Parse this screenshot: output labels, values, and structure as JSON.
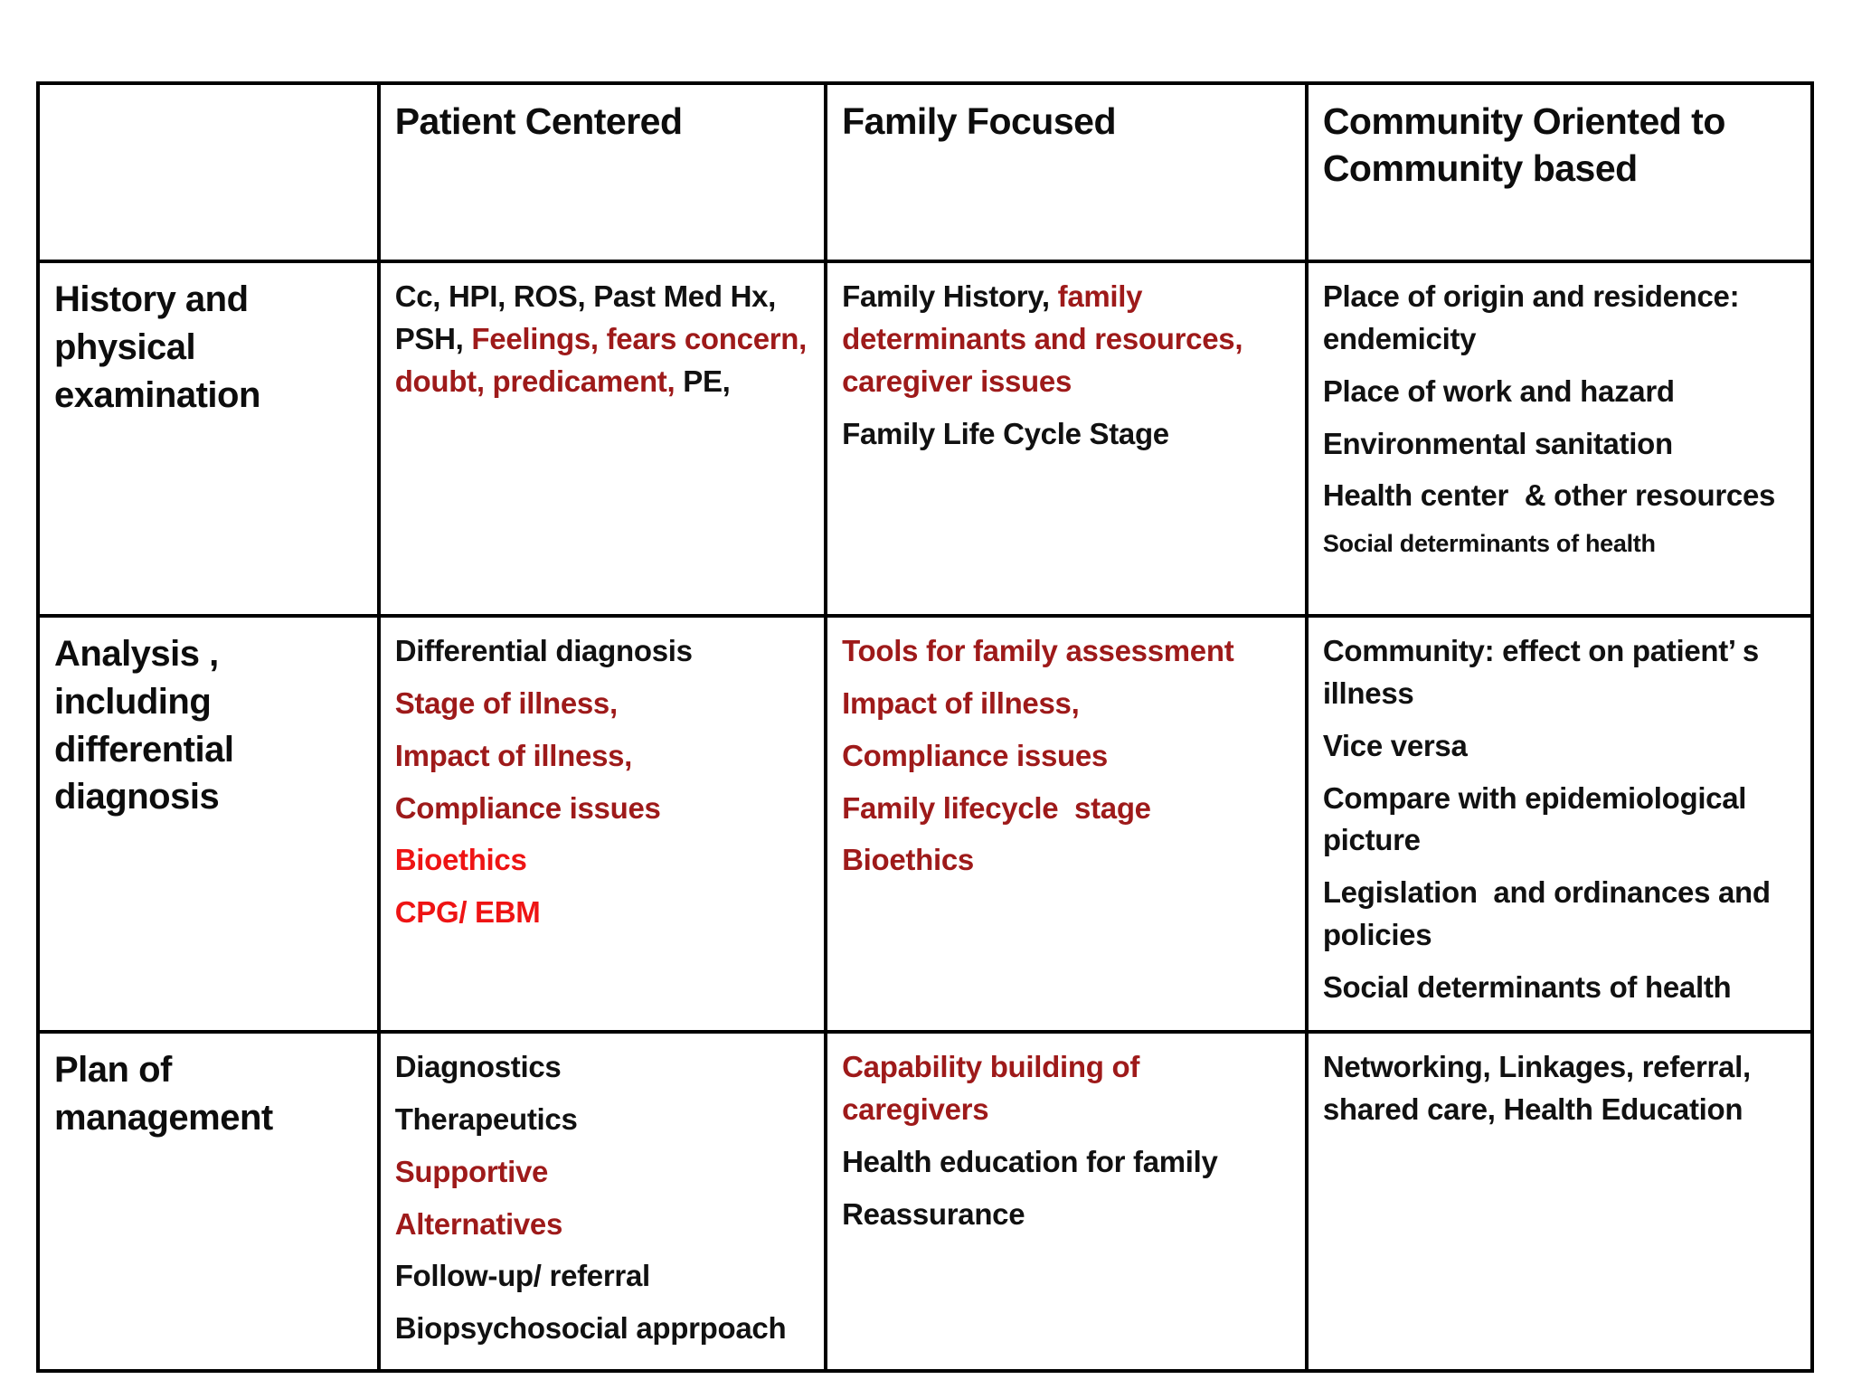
{
  "colors": {
    "black": "#111111",
    "darkRed": "#9e1a1a",
    "brightRed": "#ee1414",
    "border": "#000000",
    "background": "#ffffff"
  },
  "table": {
    "headers": {
      "corner": "",
      "col1": "Patient Centered",
      "col2": "Family Focused",
      "col3": "Community Oriented to Community based"
    },
    "rows": [
      {
        "label": "History and physical examination",
        "cells": [
          {
            "paras": [
              {
                "spans": [
                  {
                    "t": "Cc, HPI, ROS, Past Med Hx, PSH, ",
                    "c": "black"
                  },
                  {
                    "t": "Feelings, fears concern, doubt, predicament,",
                    "c": "darkRed"
                  },
                  {
                    "t": " PE,",
                    "c": "black"
                  }
                ]
              }
            ]
          },
          {
            "paras": [
              {
                "spans": [
                  {
                    "t": "Family History, ",
                    "c": "black"
                  },
                  {
                    "t": "family determinants and resources, caregiver issues",
                    "c": "darkRed"
                  }
                ]
              },
              {
                "spans": [
                  {
                    "t": "Family Life Cycle Stage",
                    "c": "black"
                  }
                ]
              }
            ]
          },
          {
            "paras": [
              {
                "spans": [
                  {
                    "t": "Place of origin and residence: endemicity",
                    "c": "black"
                  }
                ]
              },
              {
                "spans": [
                  {
                    "t": "Place of work and hazard",
                    "c": "black"
                  }
                ]
              },
              {
                "spans": [
                  {
                    "t": "Environmental sanitation",
                    "c": "black"
                  }
                ]
              },
              {
                "spans": [
                  {
                    "t": "Health center  & other resources",
                    "c": "black"
                  }
                ]
              },
              {
                "size": "small",
                "spans": [
                  {
                    "t": "Social determinants of health",
                    "c": "black"
                  }
                ]
              }
            ]
          }
        ]
      },
      {
        "label": "Analysis , including differential diagnosis",
        "cells": [
          {
            "paras": [
              {
                "spans": [
                  {
                    "t": "Differential diagnosis",
                    "c": "black"
                  }
                ]
              },
              {
                "spans": [
                  {
                    "t": "Stage of illness,",
                    "c": "darkRed"
                  }
                ]
              },
              {
                "spans": [
                  {
                    "t": "Impact of illness,",
                    "c": "darkRed"
                  }
                ]
              },
              {
                "spans": [
                  {
                    "t": "Compliance issues",
                    "c": "darkRed"
                  }
                ]
              },
              {
                "spans": [
                  {
                    "t": "Bioethics",
                    "c": "brightRed"
                  }
                ]
              },
              {
                "spans": [
                  {
                    "t": "CPG/ EBM",
                    "c": "brightRed"
                  }
                ]
              }
            ]
          },
          {
            "paras": [
              {
                "spans": [
                  {
                    "t": "Tools for family assessment",
                    "c": "darkRed"
                  }
                ]
              },
              {
                "spans": [
                  {
                    "t": "Impact of illness,",
                    "c": "darkRed"
                  }
                ]
              },
              {
                "spans": [
                  {
                    "t": "Compliance issues",
                    "c": "darkRed"
                  }
                ]
              },
              {
                "spans": [
                  {
                    "t": "Family lifecycle  stage",
                    "c": "darkRed"
                  }
                ]
              },
              {
                "spans": [
                  {
                    "t": "Bioethics",
                    "c": "darkRed"
                  }
                ]
              }
            ]
          },
          {
            "paras": [
              {
                "spans": [
                  {
                    "t": "Community: effect on patient’ s illness",
                    "c": "black"
                  }
                ]
              },
              {
                "spans": [
                  {
                    "t": "Vice versa",
                    "c": "black"
                  }
                ]
              },
              {
                "spans": [
                  {
                    "t": "Compare with epidemiological picture",
                    "c": "black"
                  }
                ]
              },
              {
                "spans": [
                  {
                    "t": "Legislation  and ordinances and policies",
                    "c": "black"
                  }
                ]
              },
              {
                "spans": [
                  {
                    "t": "Social determinants of health",
                    "c": "black"
                  }
                ]
              }
            ]
          }
        ]
      },
      {
        "label": "Plan of management",
        "cells": [
          {
            "paras": [
              {
                "spans": [
                  {
                    "t": "Diagnostics",
                    "c": "black"
                  }
                ]
              },
              {
                "spans": [
                  {
                    "t": "Therapeutics",
                    "c": "black"
                  }
                ]
              },
              {
                "spans": [
                  {
                    "t": "Supportive",
                    "c": "darkRed"
                  }
                ]
              },
              {
                "spans": [
                  {
                    "t": "Alternatives",
                    "c": "darkRed"
                  }
                ]
              },
              {
                "spans": [
                  {
                    "t": "Follow-up/ referral",
                    "c": "black"
                  }
                ]
              },
              {
                "spans": [
                  {
                    "t": "Biopsychosocial apprpoach",
                    "c": "black"
                  }
                ]
              }
            ]
          },
          {
            "paras": [
              {
                "spans": [
                  {
                    "t": "Capability building of caregivers",
                    "c": "darkRed"
                  }
                ]
              },
              {
                "spans": [
                  {
                    "t": "Health education for family",
                    "c": "black"
                  }
                ]
              },
              {
                "spans": [
                  {
                    "t": "Reassurance",
                    "c": "black"
                  }
                ]
              }
            ]
          },
          {
            "paras": [
              {
                "spans": [
                  {
                    "t": "Networking, Linkages, referral, shared care, Health Education",
                    "c": "black"
                  }
                ]
              }
            ]
          }
        ]
      }
    ]
  }
}
